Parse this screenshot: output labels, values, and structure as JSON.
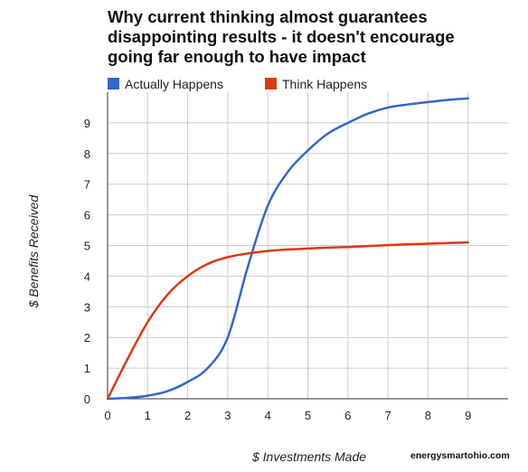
{
  "chart_data": {
    "type": "line",
    "title_lines": [
      "Why current thinking almost guarantees",
      "disappointing results - it doesn't encourage",
      "going far enough to have impact"
    ],
    "xlabel": "$ Investments Made",
    "ylabel": "$ Benefits Received",
    "xlim": [
      0,
      10
    ],
    "ylim": [
      0,
      10
    ],
    "x_ticks": [
      0,
      1,
      2,
      3,
      4,
      5,
      6,
      7,
      8,
      9
    ],
    "y_ticks": [
      0,
      1,
      2,
      3,
      4,
      5,
      6,
      7,
      8,
      9
    ],
    "grid": true,
    "legend_position": "top-left",
    "series": [
      {
        "name": "Actually Happens",
        "color": "#3366cc",
        "x": [
          0,
          0.5,
          1,
          1.5,
          2,
          2.5,
          3,
          3.5,
          4,
          4.5,
          5,
          5.5,
          6,
          6.5,
          7,
          7.5,
          8,
          8.5,
          9
        ],
        "y": [
          0,
          0.03,
          0.1,
          0.25,
          0.55,
          1.0,
          2.0,
          4.3,
          6.3,
          7.4,
          8.1,
          8.65,
          9.0,
          9.3,
          9.5,
          9.6,
          9.68,
          9.75,
          9.8
        ]
      },
      {
        "name": "Think Happens",
        "color": "#dc3912",
        "x": [
          0,
          0.5,
          1,
          1.5,
          2,
          2.5,
          3,
          3.5,
          4,
          4.5,
          5,
          5.5,
          6,
          6.5,
          7,
          7.5,
          8,
          8.5,
          9
        ],
        "y": [
          0,
          1.3,
          2.5,
          3.4,
          4.0,
          4.4,
          4.62,
          4.74,
          4.82,
          4.87,
          4.9,
          4.93,
          4.95,
          4.98,
          5.01,
          5.04,
          5.06,
          5.08,
          5.1
        ]
      }
    ]
  },
  "watermark": "energysmartohio.com"
}
